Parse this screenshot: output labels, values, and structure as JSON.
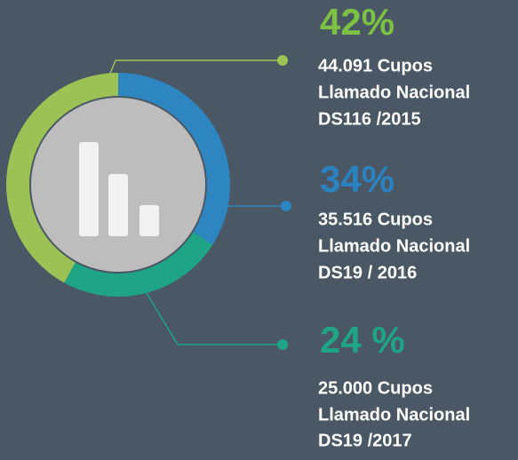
{
  "chart_data": {
    "type": "donut",
    "categories": [
      "Llamado Nacional DS116 /2015",
      "Llamado Nacional DS19 / 2016",
      "Llamado Nacional DS19 /2017"
    ],
    "values": [
      42,
      34,
      24
    ],
    "value_labels": [
      "42%",
      "34%",
      "24 %"
    ],
    "colors": [
      "#9cc155",
      "#2e86c1",
      "#1fa486"
    ],
    "label_colors": [
      "#7cc143",
      "#2a82c0",
      "#1fa486"
    ],
    "details": [
      [
        "44.091 Cupos",
        "Llamado Nacional",
        "DS116 /2015"
      ],
      [
        "35.516 Cupos",
        "Llamado Nacional",
        "DS19 / 2016"
      ],
      [
        "25.000 Cupos",
        "Llamado Nacional",
        "DS19 /2017"
      ]
    ]
  }
}
